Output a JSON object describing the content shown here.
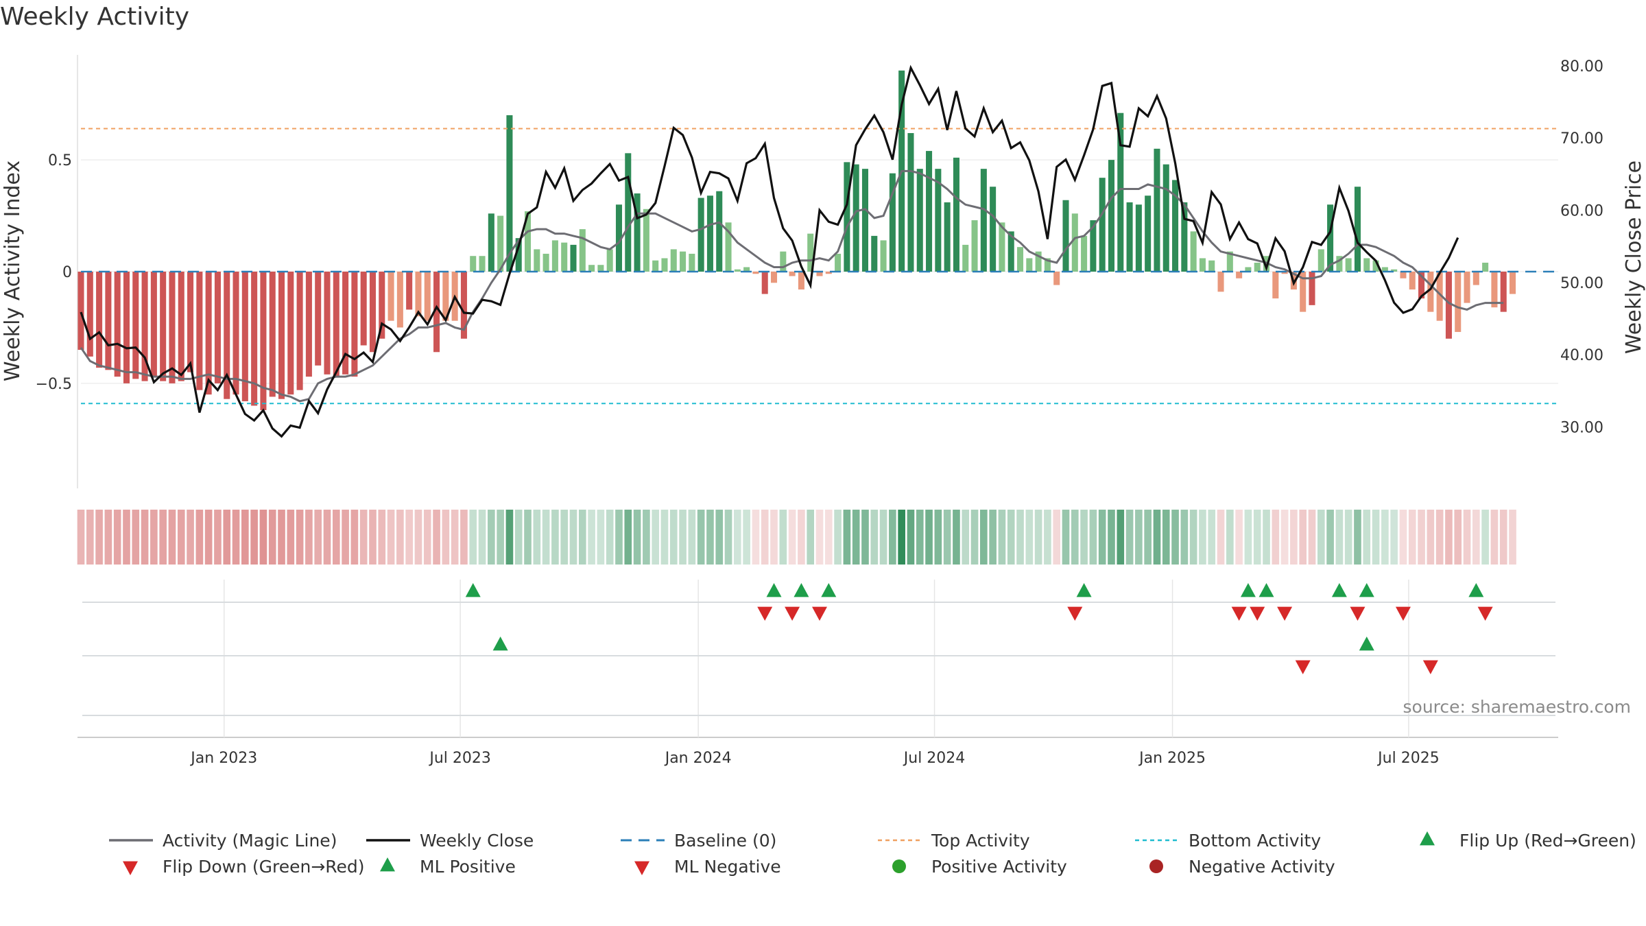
{
  "chart_data": {
    "type": "bar",
    "title": "Weekly Activity",
    "ylabel": "Weekly Activity Index",
    "y2label": "Weekly Close Price",
    "ylim": [
      -0.97,
      0.97
    ],
    "y2lim": [
      21.5,
      81.5
    ],
    "yticks": [
      {
        "v": 0.5,
        "label": "0.5"
      },
      {
        "v": 0,
        "label": "0"
      },
      {
        "v": -0.5,
        "label": "−0.5"
      }
    ],
    "y2ticks": [
      "80.00",
      "70.00",
      "60.00",
      "50.00",
      "40.00",
      "30.00"
    ],
    "xtick_labels": [
      "Jan 2023",
      "Jul 2023",
      "Jan 2024",
      "Jul 2024",
      "Jan 2025",
      "Jul 2025"
    ],
    "x_range_weeks": [
      0,
      162
    ],
    "xtick_weeks": [
      15.7,
      41.6,
      67.7,
      93.6,
      119.7,
      145.6
    ],
    "top_activity_level": 0.64,
    "bottom_activity_level": -0.59,
    "activity": [
      -0.35,
      -0.38,
      -0.43,
      -0.44,
      -0.47,
      -0.5,
      -0.48,
      -0.49,
      -0.47,
      -0.49,
      -0.5,
      -0.49,
      -0.45,
      -0.53,
      -0.55,
      -0.5,
      -0.57,
      -0.55,
      -0.58,
      -0.6,
      -0.62,
      -0.56,
      -0.57,
      -0.55,
      -0.53,
      -0.47,
      -0.42,
      -0.46,
      -0.47,
      -0.46,
      -0.47,
      -0.33,
      -0.36,
      -0.3,
      -0.22,
      -0.25,
      -0.17,
      -0.2,
      -0.22,
      -0.36,
      -0.22,
      -0.22,
      -0.3,
      0.07,
      0.07,
      0.26,
      0.25,
      0.7,
      0.15,
      0.27,
      0.1,
      0.08,
      0.14,
      0.13,
      0.12,
      0.19,
      0.03,
      0.03,
      0.1,
      0.3,
      0.53,
      0.35,
      0.28,
      0.05,
      0.06,
      0.1,
      0.09,
      0.08,
      0.33,
      0.34,
      0.36,
      0.22,
      0.01,
      0.02,
      -0.01,
      -0.1,
      -0.05,
      0.09,
      -0.02,
      -0.08,
      0.17,
      -0.02,
      -0.01,
      0.08,
      0.49,
      0.48,
      0.46,
      0.16,
      0.14,
      0.44,
      0.9,
      0.62,
      0.46,
      0.54,
      0.46,
      0.31,
      0.51,
      0.12,
      0.23,
      0.46,
      0.38,
      0.22,
      0.18,
      0.11,
      0.06,
      0.09,
      0.06,
      -0.06,
      0.32,
      0.26,
      0.16,
      0.23,
      0.42,
      0.5,
      0.71,
      0.31,
      0.3,
      0.34,
      0.55,
      0.48,
      0.41,
      0.31,
      0.18,
      0.06,
      0.05,
      -0.09,
      0.09,
      -0.03,
      0.02,
      0.04,
      0.07,
      -0.12,
      -0.01,
      -0.08,
      -0.18,
      -0.15,
      0.1,
      0.3,
      0.07,
      0.06,
      0.38,
      0.06,
      0.05,
      0.02,
      0.01,
      -0.03,
      -0.08,
      -0.12,
      -0.18,
      -0.22,
      -0.3,
      -0.27,
      -0.14,
      -0.06,
      0.04,
      -0.16,
      -0.18,
      -0.1
    ],
    "magic_line": [
      -0.34,
      -0.4,
      -0.42,
      -0.43,
      -0.44,
      -0.45,
      -0.45,
      -0.46,
      -0.47,
      -0.47,
      -0.47,
      -0.48,
      -0.48,
      -0.47,
      -0.46,
      -0.47,
      -0.48,
      -0.48,
      -0.49,
      -0.5,
      -0.52,
      -0.53,
      -0.55,
      -0.56,
      -0.58,
      -0.57,
      -0.5,
      -0.48,
      -0.47,
      -0.47,
      -0.46,
      -0.44,
      -0.42,
      -0.38,
      -0.34,
      -0.3,
      -0.28,
      -0.25,
      -0.25,
      -0.24,
      -0.23,
      -0.25,
      -0.26,
      -0.18,
      -0.12,
      -0.05,
      0.01,
      0.08,
      0.14,
      0.18,
      0.19,
      0.19,
      0.17,
      0.17,
      0.16,
      0.15,
      0.13,
      0.11,
      0.1,
      0.13,
      0.2,
      0.26,
      0.26,
      0.26,
      0.24,
      0.22,
      0.2,
      0.18,
      0.19,
      0.21,
      0.22,
      0.18,
      0.13,
      0.1,
      0.07,
      0.04,
      0.02,
      0.02,
      0.04,
      0.05,
      0.05,
      0.06,
      0.05,
      0.09,
      0.2,
      0.27,
      0.28,
      0.24,
      0.25,
      0.35,
      0.45,
      0.45,
      0.44,
      0.42,
      0.4,
      0.37,
      0.33,
      0.3,
      0.29,
      0.28,
      0.25,
      0.2,
      0.16,
      0.13,
      0.09,
      0.07,
      0.05,
      0.04,
      0.1,
      0.15,
      0.16,
      0.2,
      0.26,
      0.33,
      0.37,
      0.37,
      0.37,
      0.39,
      0.38,
      0.37,
      0.34,
      0.3,
      0.24,
      0.18,
      0.13,
      0.09,
      0.08,
      0.07,
      0.06,
      0.05,
      0.04,
      0.02,
      0.01,
      -0.01,
      -0.03,
      -0.03,
      -0.02,
      0.03,
      0.05,
      0.08,
      0.12,
      0.12,
      0.11,
      0.09,
      0.07,
      0.04,
      0.02,
      -0.02,
      -0.06,
      -0.1,
      -0.14,
      -0.16,
      -0.17,
      -0.15,
      -0.14,
      -0.14,
      -0.14
    ],
    "weekly_close": [
      45.9,
      42.2,
      43.1,
      41.3,
      41.5,
      40.9,
      41.0,
      39.6,
      36.2,
      37.4,
      38.1,
      37.2,
      38.8,
      32.0,
      36.5,
      35.1,
      37.2,
      34.5,
      31.8,
      30.9,
      32.3,
      29.8,
      28.7,
      30.2,
      29.9,
      33.6,
      31.9,
      35.2,
      37.6,
      40.1,
      39.4,
      40.3,
      39.0,
      44.3,
      43.5,
      41.9,
      43.8,
      45.9,
      44.2,
      46.6,
      44.8,
      48.0,
      45.8,
      45.7,
      47.6,
      47.4,
      46.9,
      51.2,
      55.0,
      59.5,
      60.4,
      65.3,
      63.1,
      65.8,
      61.3,
      62.8,
      63.7,
      65.1,
      66.4,
      64.1,
      64.6,
      58.9,
      59.4,
      61.0,
      66.1,
      71.4,
      70.4,
      67.3,
      62.4,
      65.3,
      65.1,
      64.4,
      61.3,
      66.5,
      67.2,
      69.2,
      61.7,
      57.5,
      55.8,
      52.2,
      49.6,
      60.0,
      58.4,
      58.0,
      60.8,
      69.0,
      71.2,
      73.1,
      70.8,
      67.0,
      74.6,
      79.7,
      77.3,
      74.7,
      76.8,
      71.1,
      76.5,
      71.3,
      70.2,
      74.1,
      70.8,
      72.4,
      68.6,
      69.4,
      66.9,
      62.6,
      56.0,
      66.0,
      67.0,
      64.2,
      67.6,
      71.2,
      77.2,
      77.6,
      69.0,
      68.8,
      74.1,
      73.0,
      75.8,
      72.7,
      66.5,
      58.8,
      58.5,
      55.5,
      62.5,
      60.8,
      56.0,
      58.3,
      56.0,
      55.4,
      52.0,
      56.1,
      54.3,
      49.9,
      52.1,
      55.6,
      55.2,
      57.0,
      63.1,
      59.9,
      55.5,
      54.2,
      53.0,
      50.3,
      47.2,
      45.8,
      46.3,
      48.1,
      49.1,
      51.3,
      53.4,
      56.2
    ],
    "legend": [
      {
        "kind": "magic",
        "label": "Activity (Magic Line)"
      },
      {
        "kind": "close",
        "label": "Weekly Close"
      },
      {
        "kind": "baseline",
        "label": "Baseline (0)"
      },
      {
        "kind": "top",
        "label": "Top Activity"
      },
      {
        "kind": "bottom",
        "label": "Bottom Activity"
      },
      {
        "kind": "flip-up",
        "label": "Flip Up (Red→Green)"
      },
      {
        "kind": "flip-down",
        "label": "Flip Down (Green→Red)"
      },
      {
        "kind": "ml-pos",
        "label": "ML Positive"
      },
      {
        "kind": "ml-neg",
        "label": "ML Negative"
      },
      {
        "kind": "pos",
        "label": "Positive Activity"
      },
      {
        "kind": "neg",
        "label": "Negative Activity"
      }
    ],
    "flip_up_weeks": [
      43,
      76,
      79,
      82,
      110,
      128,
      130,
      138,
      141,
      153
    ],
    "flip_down_weeks": [
      75,
      78,
      81,
      109,
      127,
      129,
      132,
      140,
      145,
      154
    ],
    "ml_positive_weeks": [
      46,
      141
    ],
    "ml_negative_weeks": [
      134,
      148
    ]
  },
  "source": "source: sharemaestro.com",
  "colors": {
    "pos_strong": "#2e8b57",
    "pos_weak": "#86c488",
    "neg_strong": "#cd5555",
    "neg_weak": "#e9987c",
    "magic": "#6d6d73",
    "close": "#111111",
    "baseline": "#2b7fb8",
    "top": "#f0a060",
    "bottom": "#20bcd0",
    "up": "#1e9e4a",
    "down": "#d62828",
    "pos_dot": "#2ca02c",
    "neg_dot": "#a92424"
  }
}
